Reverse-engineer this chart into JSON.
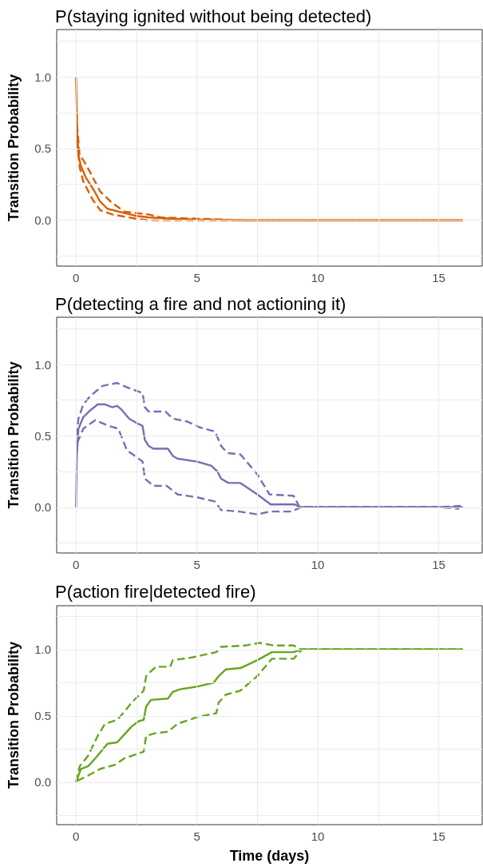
{
  "chart_data": [
    {
      "type": "line",
      "title": "P(staying ignited without being detected)",
      "ylabel": "Transition Probability",
      "xlim": [
        -0.8,
        16.8
      ],
      "ylim": [
        -0.32,
        1.33
      ],
      "xticks": [
        0,
        {
          "value": 2.5,
          "label": null
        },
        5,
        {
          "value": 7.5,
          "label": null
        },
        10,
        {
          "value": 12.5,
          "label": null
        },
        15
      ],
      "yticks": [
        {
          "value": -0.25,
          "label": null
        },
        {
          "value": 0,
          "label": "0.0"
        },
        {
          "value": 0.25,
          "label": null
        },
        {
          "value": 0.5,
          "label": "0.5"
        },
        {
          "value": 0.75,
          "label": null
        },
        {
          "value": 1,
          "label": "1.0"
        },
        {
          "value": 1.25,
          "label": null
        }
      ],
      "grid": true,
      "marker": "none",
      "series": [
        {
          "color": "#d95f02",
          "line_style": "solid",
          "x": [
            0,
            0.05,
            0.1,
            0.2,
            0.4,
            0.7,
            1.0,
            1.3,
            2,
            2.5,
            3,
            4,
            5,
            7,
            16
          ],
          "values": [
            1.0,
            0.6,
            0.45,
            0.38,
            0.3,
            0.22,
            0.13,
            0.08,
            0.05,
            0.03,
            0.02,
            0.01,
            0.005,
            0,
            0
          ]
        },
        {
          "color": "#d95f02",
          "line_style": "dashed",
          "x": [
            0.02,
            0.05,
            0.15,
            0.3,
            0.6,
            1,
            1.5,
            2,
            3,
            3.5,
            5,
            7,
            16
          ],
          "values": [
            0.75,
            0.65,
            0.45,
            0.42,
            0.33,
            0.2,
            0.12,
            0.06,
            0.04,
            0.02,
            0.01,
            0,
            0
          ]
        },
        {
          "color": "#d95f02",
          "line_style": "dashed",
          "x": [
            0.05,
            0.15,
            0.3,
            0.7,
            1,
            1.5,
            2.5,
            3,
            15.9
          ],
          "values": [
            0.55,
            0.37,
            0.27,
            0.14,
            0.07,
            0.04,
            0.01,
            0,
            0
          ]
        }
      ]
    },
    {
      "type": "line",
      "title": "P(detecting a fire and not actioning it)",
      "ylabel": "Transition Probability",
      "xlim": [
        -0.8,
        16.8
      ],
      "ylim": [
        -0.32,
        1.33
      ],
      "xticks": [
        0,
        {
          "value": 2.5,
          "label": null
        },
        5,
        {
          "value": 7.5,
          "label": null
        },
        10,
        {
          "value": 12.5,
          "label": null
        },
        15
      ],
      "yticks": [
        {
          "value": -0.25,
          "label": null
        },
        {
          "value": 0,
          "label": "0.0"
        },
        {
          "value": 0.25,
          "label": null
        },
        {
          "value": 0.5,
          "label": "0.5"
        },
        {
          "value": 0.75,
          "label": null
        },
        {
          "value": 1,
          "label": "1.0"
        },
        {
          "value": 1.25,
          "label": null
        }
      ],
      "grid": true,
      "marker": "none",
      "series": [
        {
          "color": "#7570b3",
          "line_style": "solid",
          "x": [
            0,
            0.03,
            0.1,
            0.3,
            0.6,
            0.9,
            1.2,
            1.5,
            1.7,
            1.9,
            2.2,
            2.5,
            2.75,
            2.85,
            3.0,
            3.2,
            3.8,
            4.0,
            4.2,
            5.0,
            5.6,
            5.85,
            6.0,
            6.3,
            6.8,
            7.5,
            8.05,
            9.05,
            9.25,
            16
          ],
          "values": [
            0,
            0.35,
            0.55,
            0.63,
            0.68,
            0.72,
            0.72,
            0.7,
            0.71,
            0.68,
            0.62,
            0.59,
            0.57,
            0.47,
            0.43,
            0.41,
            0.41,
            0.36,
            0.34,
            0.32,
            0.29,
            0.25,
            0.2,
            0.17,
            0.17,
            0.09,
            0.02,
            0.02,
            0,
            0
          ]
        },
        {
          "color": "#7570b3",
          "line_style": "dashed",
          "x": [
            0.03,
            0.1,
            0.3,
            0.6,
            1.1,
            1.7,
            2.1,
            2.75,
            2.85,
            3.0,
            3.7,
            4.0,
            4.6,
            5.1,
            5.75,
            6.0,
            6.25,
            6.8,
            7.5,
            8.0,
            9.0,
            9.25,
            15,
            15.9
          ],
          "values": [
            0.5,
            0.62,
            0.72,
            0.78,
            0.85,
            0.87,
            0.84,
            0.8,
            0.7,
            0.67,
            0.67,
            0.62,
            0.6,
            0.56,
            0.53,
            0.43,
            0.38,
            0.37,
            0.23,
            0.09,
            0.08,
            0,
            0,
            0.01
          ]
        },
        {
          "color": "#7570b3",
          "line_style": "dashed",
          "x": [
            0.05,
            0.3,
            0.8,
            1.35,
            1.75,
            2.1,
            2.75,
            2.85,
            3.2,
            3.75,
            4.2,
            5.0,
            5.75,
            6.0,
            6.75,
            7.5,
            8.0,
            8.9,
            9.3,
            15,
            15.85
          ],
          "values": [
            0.45,
            0.55,
            0.61,
            0.57,
            0.55,
            0.4,
            0.32,
            0.2,
            0.15,
            0.15,
            0.09,
            0.07,
            0.04,
            -0.02,
            -0.03,
            -0.05,
            -0.03,
            -0.03,
            0,
            0,
            -0.01
          ]
        }
      ]
    },
    {
      "type": "line",
      "title": "P(action fire|detected fire)",
      "xlabel": "Time (days)",
      "ylabel": "Transition Probability",
      "xlim": [
        -0.8,
        16.8
      ],
      "ylim": [
        -0.32,
        1.33
      ],
      "xticks": [
        0,
        {
          "value": 2.5,
          "label": null
        },
        5,
        {
          "value": 7.5,
          "label": null
        },
        10,
        {
          "value": 12.5,
          "label": null
        },
        15
      ],
      "yticks": [
        {
          "value": -0.25,
          "label": null
        },
        {
          "value": 0,
          "label": "0.0"
        },
        {
          "value": 0.25,
          "label": null
        },
        {
          "value": 0.5,
          "label": "0.5"
        },
        {
          "value": 0.75,
          "label": null
        },
        {
          "value": 1,
          "label": "1.0"
        },
        {
          "value": 1.25,
          "label": null
        }
      ],
      "grid": true,
      "marker": "none",
      "series": [
        {
          "color": "#66a61e",
          "line_style": "solid",
          "x": [
            0,
            0.2,
            0.5,
            0.8,
            1.3,
            1.7,
            2,
            2.3,
            2.6,
            2.8,
            2.9,
            3.1,
            3.8,
            4.0,
            4.3,
            5,
            5.7,
            5.9,
            6.2,
            6.8,
            7.5,
            8.1,
            9.0,
            9.3,
            16
          ],
          "values": [
            0,
            0.1,
            0.12,
            0.18,
            0.29,
            0.3,
            0.36,
            0.42,
            0.46,
            0.47,
            0.57,
            0.62,
            0.63,
            0.68,
            0.7,
            0.72,
            0.75,
            0.8,
            0.85,
            0.86,
            0.92,
            0.98,
            0.98,
            1.0,
            1.0
          ]
        },
        {
          "color": "#66a61e",
          "line_style": "dashed",
          "x": [
            0,
            0.15,
            0.5,
            0.9,
            1.2,
            1.7,
            2.0,
            2.3,
            2.8,
            2.9,
            3.3,
            3.9,
            4.0,
            4.8,
            5.3,
            5.8,
            6.0,
            7,
            7.6,
            8.2,
            9.0,
            9.3,
            16
          ],
          "values": [
            0,
            0.12,
            0.2,
            0.35,
            0.44,
            0.47,
            0.53,
            0.6,
            0.69,
            0.8,
            0.87,
            0.87,
            0.92,
            0.94,
            0.96,
            0.98,
            1.02,
            1.03,
            1.05,
            1.03,
            1.03,
            1.0,
            1.0
          ]
        },
        {
          "color": "#66a61e",
          "line_style": "dashed",
          "x": [
            0.05,
            0.5,
            1.0,
            1.6,
            2.0,
            2.8,
            2.9,
            3.3,
            3.8,
            4.2,
            5,
            5.8,
            5.9,
            6.2,
            6.8,
            7.5,
            8.1,
            9.0,
            9.35,
            15.9
          ],
          "values": [
            0.01,
            0.05,
            0.1,
            0.13,
            0.18,
            0.23,
            0.35,
            0.37,
            0.38,
            0.44,
            0.49,
            0.52,
            0.6,
            0.66,
            0.69,
            0.8,
            0.93,
            0.93,
            1.0,
            1.0
          ]
        }
      ]
    }
  ]
}
